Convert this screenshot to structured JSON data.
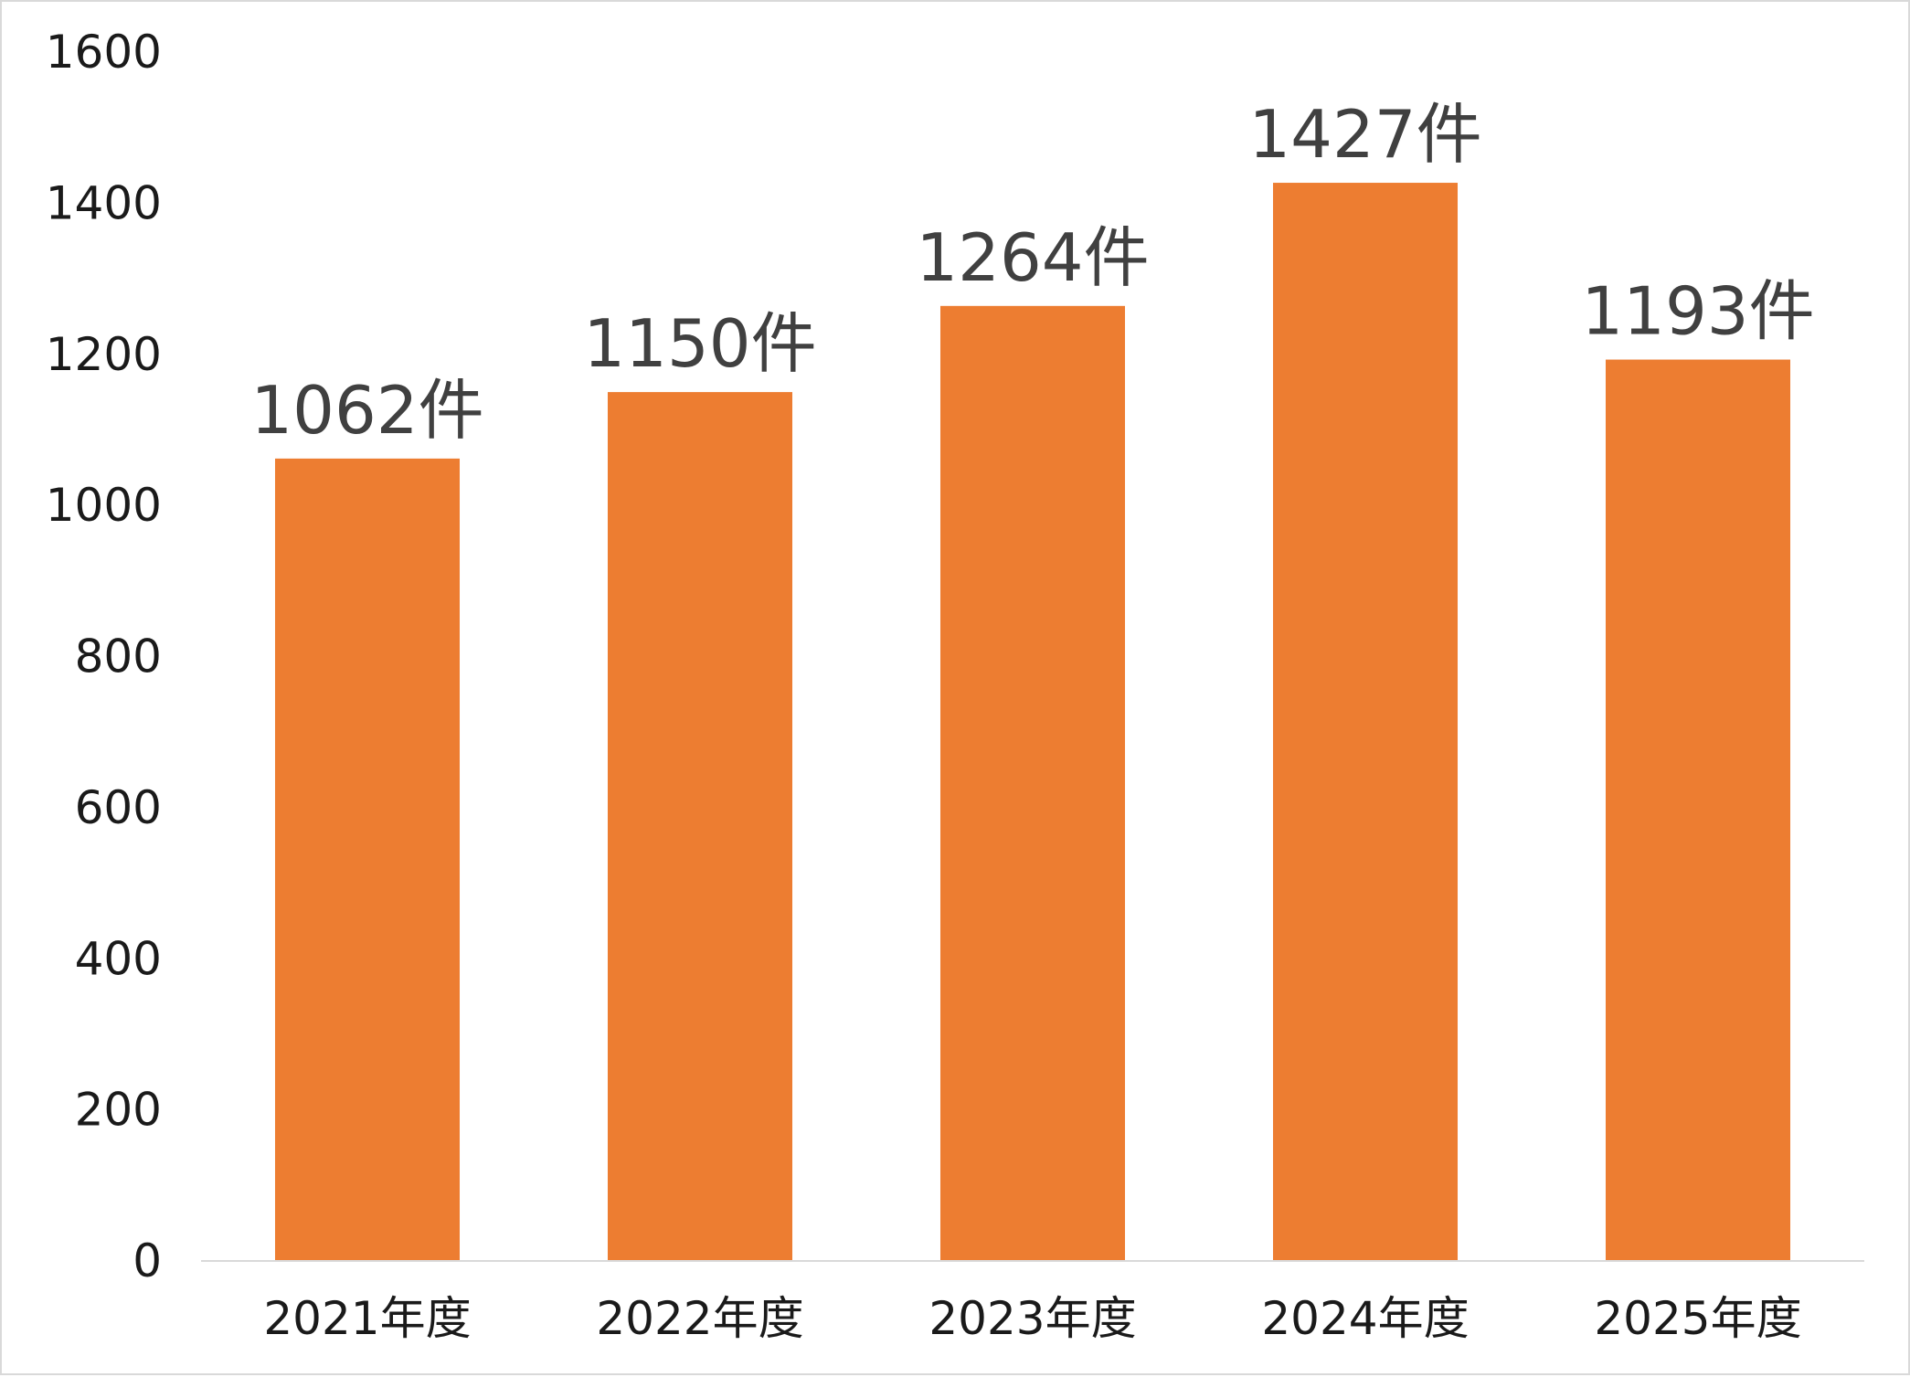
{
  "chart_data": {
    "type": "bar",
    "categories": [
      "2021年度",
      "2022年度",
      "2023年度",
      "2024年度",
      "2025年度"
    ],
    "values": [
      1062,
      1150,
      1264,
      1427,
      1193
    ],
    "data_labels": [
      "1062件",
      "1150件",
      "1264件",
      "1427件",
      "1193件"
    ],
    "title": "",
    "xlabel": "",
    "ylabel": "",
    "ylim": [
      0,
      1600
    ],
    "yticks": [
      0,
      200,
      400,
      600,
      800,
      1000,
      1200,
      1400,
      1600
    ],
    "grid": false,
    "legend": "none",
    "bar_color": "#ED7D31",
    "axis_color": "#d9d9d9"
  }
}
